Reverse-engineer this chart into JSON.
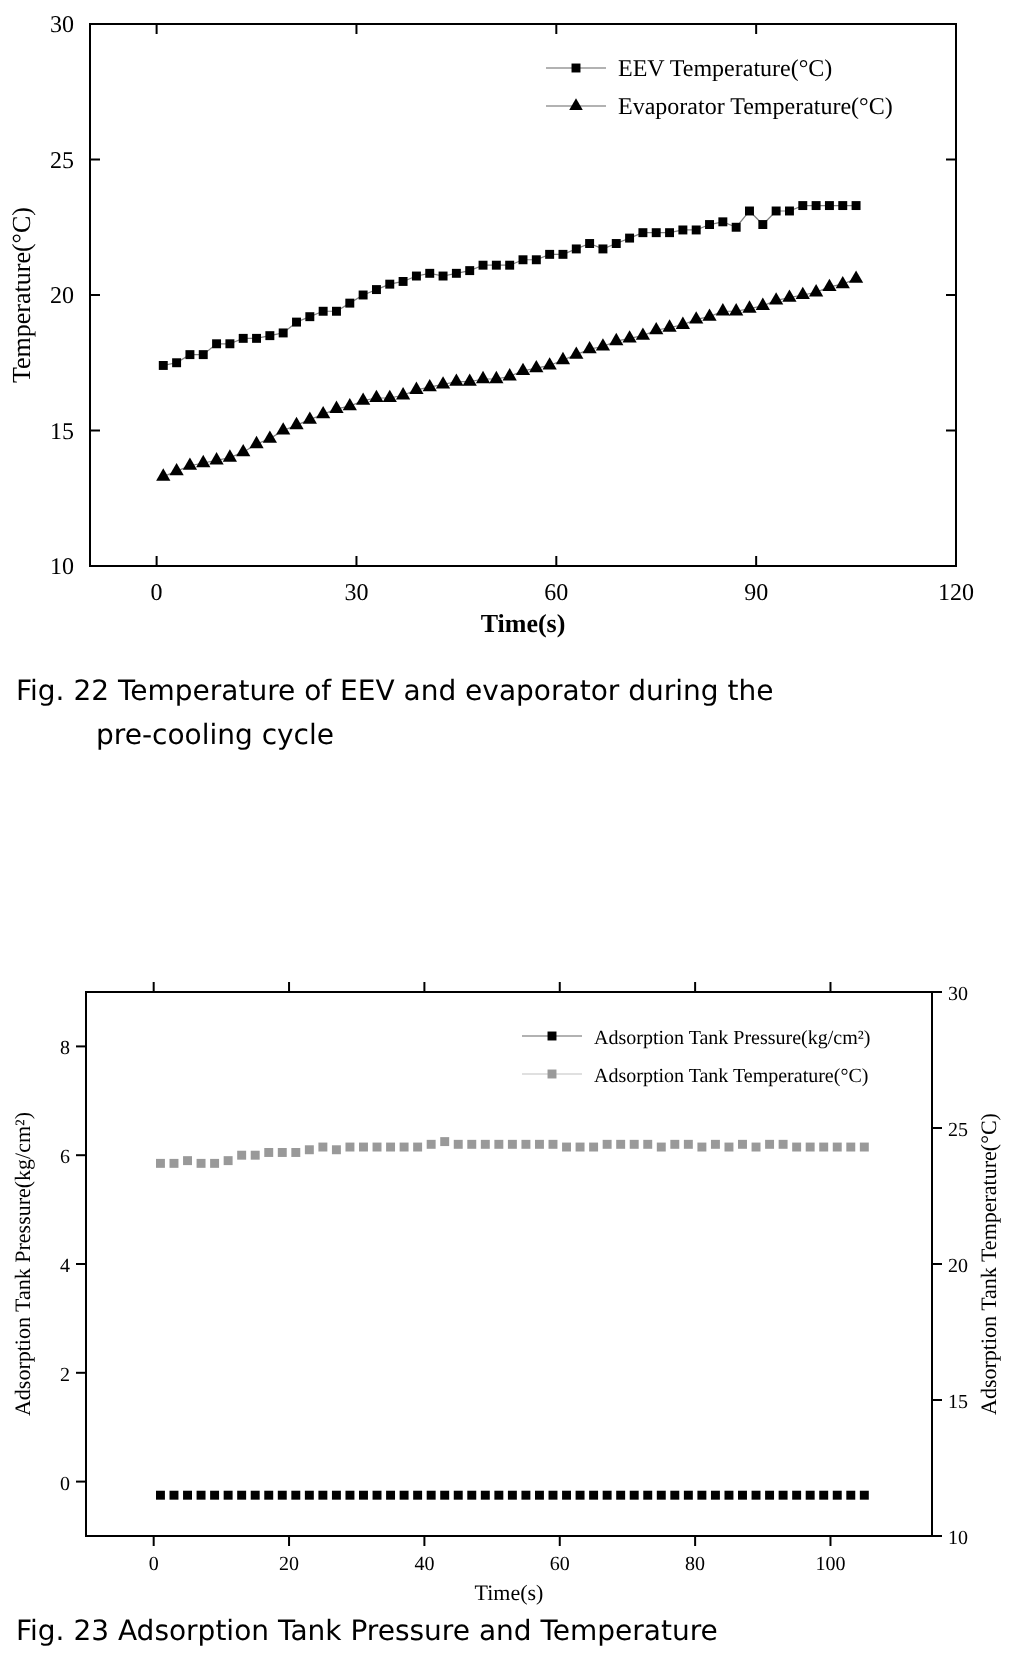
{
  "chart_data": [
    {
      "type": "line",
      "xlabel": "Time(s)",
      "ylabel": "Temperature(°C)",
      "xlim": [
        -10,
        120
      ],
      "xticks": [
        0,
        30,
        60,
        90,
        120
      ],
      "ylim": [
        10,
        30
      ],
      "yticks": [
        10,
        15,
        20,
        25,
        30
      ],
      "legend": "top right",
      "grid": false,
      "x": [
        1,
        3,
        5,
        7,
        9,
        11,
        13,
        15,
        17,
        19,
        21,
        23,
        25,
        27,
        29,
        31,
        33,
        35,
        37,
        39,
        41,
        43,
        45,
        47,
        49,
        51,
        53,
        55,
        57,
        59,
        61,
        63,
        65,
        67,
        69,
        71,
        73,
        75,
        77,
        79,
        81,
        83,
        85,
        87,
        89,
        91,
        93,
        95,
        97,
        99,
        101,
        103,
        105
      ],
      "series": [
        {
          "name": "EEV Temperature(°C)",
          "color": "#000000",
          "marker": "square",
          "values": [
            17.4,
            17.5,
            17.8,
            17.8,
            18.2,
            18.2,
            18.4,
            18.4,
            18.5,
            18.6,
            19.0,
            19.2,
            19.4,
            19.4,
            19.7,
            20.0,
            20.2,
            20.4,
            20.5,
            20.7,
            20.8,
            20.7,
            20.8,
            20.9,
            21.1,
            21.1,
            21.1,
            21.3,
            21.3,
            21.5,
            21.5,
            21.7,
            21.9,
            21.7,
            21.9,
            22.1,
            22.3,
            22.3,
            22.3,
            22.4,
            22.4,
            22.6,
            22.7,
            22.5,
            23.1,
            22.6,
            23.1,
            23.1,
            23.3,
            23.3,
            23.3,
            23.3,
            23.3
          ]
        },
        {
          "name": "Evaporator Temperature(°C)",
          "color": "#000000",
          "marker": "triangle",
          "values": [
            13.3,
            13.5,
            13.7,
            13.8,
            13.9,
            14.0,
            14.2,
            14.5,
            14.7,
            15.0,
            15.2,
            15.4,
            15.6,
            15.8,
            15.9,
            16.1,
            16.2,
            16.2,
            16.3,
            16.5,
            16.6,
            16.7,
            16.8,
            16.8,
            16.9,
            16.9,
            17.0,
            17.2,
            17.3,
            17.4,
            17.6,
            17.8,
            18.0,
            18.1,
            18.3,
            18.4,
            18.5,
            18.7,
            18.8,
            18.9,
            19.1,
            19.2,
            19.4,
            19.4,
            19.5,
            19.6,
            19.8,
            19.9,
            20.0,
            20.1,
            20.3,
            20.4,
            20.6
          ]
        }
      ],
      "annotations": [
        "Fig. 22 Temperature of EEV and evaporator during the pre-cooling cycle"
      ]
    },
    {
      "type": "scatter",
      "xlabel": "Time(s)",
      "ylabel": "Adsorption Tank Pressure(kg/cm²)",
      "y2label": "Adsorption Tank Temperature(°C)",
      "xlim": [
        -10,
        115
      ],
      "xticks": [
        0,
        20,
        40,
        60,
        80,
        100
      ],
      "ylim": [
        -1,
        9
      ],
      "yticks": [
        0,
        2,
        4,
        6,
        8
      ],
      "y2lim": [
        10,
        30
      ],
      "y2ticks": [
        10,
        15,
        20,
        25,
        30
      ],
      "legend": "top right",
      "grid": false,
      "x": [
        1,
        3,
        5,
        7,
        9,
        11,
        13,
        15,
        17,
        19,
        21,
        23,
        25,
        27,
        29,
        31,
        33,
        35,
        37,
        39,
        41,
        43,
        45,
        47,
        49,
        51,
        53,
        55,
        57,
        59,
        61,
        63,
        65,
        67,
        69,
        71,
        73,
        75,
        77,
        79,
        81,
        83,
        85,
        87,
        89,
        91,
        93,
        95,
        97,
        99,
        101,
        103,
        105
      ],
      "series": [
        {
          "name": "Adsorption Tank Pressure(kg/cm²)",
          "color": "#000000",
          "marker": "square",
          "values": [
            -0.25,
            -0.25,
            -0.25,
            -0.25,
            -0.25,
            -0.25,
            -0.25,
            -0.25,
            -0.25,
            -0.25,
            -0.25,
            -0.25,
            -0.25,
            -0.25,
            -0.25,
            -0.25,
            -0.25,
            -0.25,
            -0.25,
            -0.25,
            -0.25,
            -0.25,
            -0.25,
            -0.25,
            -0.25,
            -0.25,
            -0.25,
            -0.25,
            -0.25,
            -0.25,
            -0.25,
            -0.25,
            -0.25,
            -0.25,
            -0.25,
            -0.25,
            -0.25,
            -0.25,
            -0.25,
            -0.25,
            -0.25,
            -0.25,
            -0.25,
            -0.25,
            -0.25,
            -0.25,
            -0.25,
            -0.25,
            -0.25,
            -0.25,
            -0.25,
            -0.25,
            -0.25
          ]
        },
        {
          "name": "Adsorption Tank Temperature(°C)",
          "color": "#999999",
          "marker": "square",
          "axis": "y2",
          "values": [
            23.7,
            23.7,
            23.8,
            23.7,
            23.7,
            23.8,
            24.0,
            24.0,
            24.1,
            24.1,
            24.1,
            24.2,
            24.3,
            24.2,
            24.3,
            24.3,
            24.3,
            24.3,
            24.3,
            24.3,
            24.4,
            24.5,
            24.4,
            24.4,
            24.4,
            24.4,
            24.4,
            24.4,
            24.4,
            24.4,
            24.3,
            24.3,
            24.3,
            24.4,
            24.4,
            24.4,
            24.4,
            24.3,
            24.4,
            24.4,
            24.3,
            24.4,
            24.3,
            24.4,
            24.3,
            24.4,
            24.4,
            24.3,
            24.3,
            24.3,
            24.3,
            24.3,
            24.3
          ]
        }
      ],
      "annotations": [
        "Fig. 23 Adsorption Tank Pressure and Temperature"
      ]
    }
  ]
}
